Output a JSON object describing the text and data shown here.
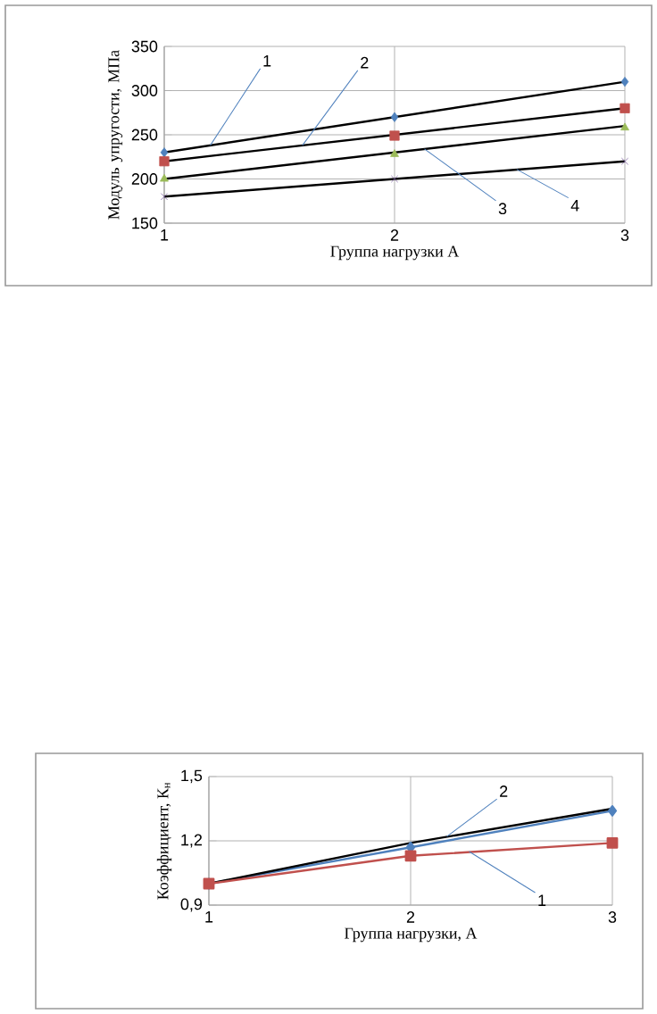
{
  "chart_data": [
    {
      "type": "scatter",
      "xlabel": "Группа нагрузки А",
      "ylabel": "Модуль упругости, МПа",
      "x": [
        1,
        2,
        3
      ],
      "xlim": [
        1,
        3
      ],
      "xticks": [
        1,
        2,
        3
      ],
      "ylim": [
        150,
        350
      ],
      "yticks": [
        150,
        200,
        250,
        300,
        350
      ],
      "grid": true,
      "series": [
        {
          "color": "#4f81bd",
          "marker": "diamond",
          "values": [
            230,
            270,
            310
          ]
        },
        {
          "color": "#c0504d",
          "marker": "square",
          "values": [
            220,
            249,
            280
          ]
        },
        {
          "color": "#9bbb59",
          "marker": "triangle",
          "values": [
            200,
            228,
            258
          ]
        },
        {
          "color": "#8064a2",
          "marker": "cross",
          "values": [
            180,
            200,
            220
          ]
        },
        {
          "type": "line",
          "color": "#000000",
          "values": [
            230,
            270,
            310
          ]
        },
        {
          "type": "line",
          "color": "#000000",
          "values": [
            220,
            250,
            280
          ]
        },
        {
          "type": "line",
          "color": "#000000",
          "values": [
            200,
            230,
            260
          ]
        },
        {
          "type": "line",
          "color": "#000000",
          "values": [
            180,
            200,
            220
          ]
        }
      ],
      "annotations": [
        {
          "text": "1",
          "x": 1.2,
          "y": 238
        },
        {
          "text": "2",
          "x": 1.6,
          "y": 238
        },
        {
          "text": "3",
          "x": 2.13,
          "y": 234
        },
        {
          "text": "4",
          "x": 2.53,
          "y": 211
        }
      ]
    },
    {
      "type": "line",
      "xlabel": "Группа нагрузки, А",
      "ylabel": "Коэффициент, К$_{н}$",
      "x": [
        1,
        2,
        3
      ],
      "xlim": [
        1,
        3
      ],
      "xticks": [
        1,
        2,
        3
      ],
      "ylim": [
        0.9,
        1.5
      ],
      "yticks": [
        {
          "value": 0.9,
          "label": "0,9"
        },
        {
          "value": 1.2,
          "label": "1,2"
        },
        {
          "value": 1.5,
          "label": "1,5"
        }
      ],
      "grid": true,
      "series": [
        {
          "color": "#4f81bd",
          "marker": "diamond",
          "values": [
            1.0,
            1.17,
            1.34
          ]
        },
        {
          "color": "#000000",
          "marker": "none",
          "values": [
            1.0,
            1.19,
            1.35
          ]
        },
        {
          "color": "#c0504d",
          "marker": "square",
          "values": [
            1.0,
            1.13,
            1.19
          ]
        }
      ],
      "annotations": [
        {
          "text": "2",
          "x": 2.18,
          "y": 1.22
        },
        {
          "text": "1",
          "x": 2.29,
          "y": 1.15
        }
      ]
    }
  ]
}
